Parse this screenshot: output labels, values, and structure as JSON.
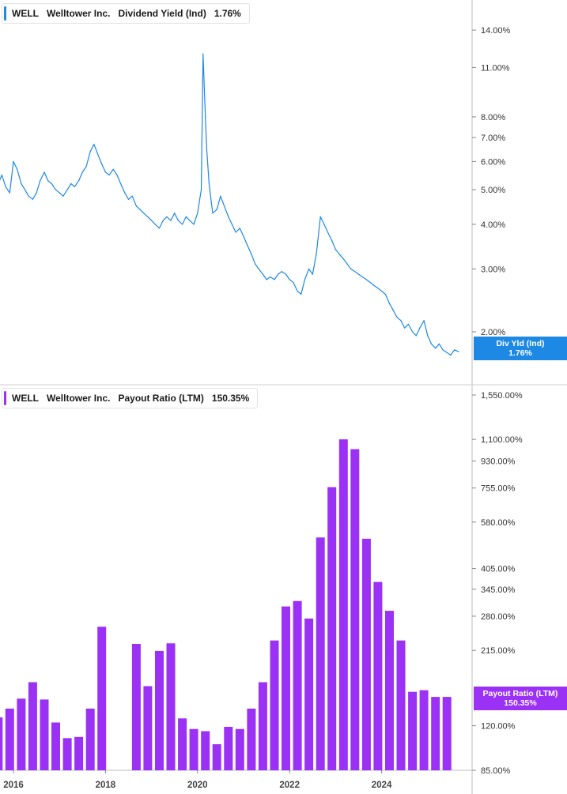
{
  "colors": {
    "yield_line": "#1e88e5",
    "payout_bar": "#9a31f5",
    "axis": "#bdbdbd"
  },
  "panels": [
    {
      "legend": {
        "ticker": "WELL",
        "company": "Welltower Inc.",
        "metric": "Dividend Yield (Ind)",
        "value": "1.76%"
      },
      "tag": {
        "line1": "Div Yld (Ind)",
        "line2": "1.76%"
      }
    },
    {
      "legend": {
        "ticker": "WELL",
        "company": "Welltower Inc.",
        "metric": "Payout Ratio (LTM)",
        "value": "150.35%"
      },
      "tag": {
        "line1": "Payout Ratio (LTM)",
        "line2": "150.35%"
      }
    }
  ],
  "chart_data": [
    {
      "type": "line",
      "scale": "log",
      "x_ticks": [
        "2016",
        "2018",
        "2020",
        "2022",
        "2024"
      ],
      "y_ticks": [
        "2.00%",
        "3.00%",
        "4.00%",
        "5.00%",
        "6.00%",
        "7.00%",
        "8.00%",
        "11.00%",
        "14.00%"
      ],
      "ylim": [
        1.55,
        17
      ],
      "x": [
        2015.67,
        2015.75,
        2015.83,
        2015.92,
        2016.0,
        2016.08,
        2016.17,
        2016.25,
        2016.33,
        2016.42,
        2016.5,
        2016.58,
        2016.67,
        2016.75,
        2016.83,
        2016.92,
        2017.0,
        2017.08,
        2017.17,
        2017.25,
        2017.33,
        2017.42,
        2017.5,
        2017.58,
        2017.67,
        2017.75,
        2017.83,
        2017.92,
        2018.0,
        2018.08,
        2018.17,
        2018.25,
        2018.33,
        2018.42,
        2018.5,
        2018.58,
        2018.67,
        2018.75,
        2018.83,
        2018.92,
        2019.0,
        2019.08,
        2019.17,
        2019.25,
        2019.33,
        2019.42,
        2019.5,
        2019.58,
        2019.67,
        2019.75,
        2019.83,
        2019.92,
        2020.0,
        2020.08,
        2020.12,
        2020.17,
        2020.2,
        2020.25,
        2020.3,
        2020.33,
        2020.42,
        2020.5,
        2020.58,
        2020.67,
        2020.75,
        2020.83,
        2020.92,
        2021.0,
        2021.08,
        2021.17,
        2021.25,
        2021.33,
        2021.42,
        2021.5,
        2021.58,
        2021.67,
        2021.75,
        2021.83,
        2021.92,
        2022.0,
        2022.08,
        2022.17,
        2022.25,
        2022.33,
        2022.42,
        2022.5,
        2022.58,
        2022.67,
        2022.75,
        2022.83,
        2022.92,
        2023.0,
        2023.08,
        2023.17,
        2023.25,
        2023.33,
        2023.42,
        2023.5,
        2023.58,
        2023.67,
        2023.75,
        2023.83,
        2023.92,
        2024.0,
        2024.08,
        2024.17,
        2024.25,
        2024.33,
        2024.42,
        2024.5,
        2024.58,
        2024.67,
        2024.75,
        2024.83,
        2024.92,
        2025.0,
        2025.08,
        2025.17,
        2025.25,
        2025.33,
        2025.42,
        2025.5,
        2025.58,
        2025.67
      ],
      "y": [
        5.2,
        5.5,
        5.1,
        4.9,
        6.0,
        5.7,
        5.2,
        5.0,
        4.8,
        4.7,
        4.9,
        5.3,
        5.6,
        5.3,
        5.2,
        5.0,
        4.9,
        4.8,
        5.0,
        5.2,
        5.1,
        5.3,
        5.6,
        5.8,
        6.4,
        6.7,
        6.3,
        5.9,
        5.6,
        5.5,
        5.7,
        5.5,
        5.2,
        4.9,
        4.7,
        4.8,
        4.5,
        4.4,
        4.3,
        4.2,
        4.1,
        4.0,
        3.9,
        4.1,
        4.2,
        4.1,
        4.3,
        4.1,
        4.0,
        4.2,
        4.1,
        4.0,
        4.3,
        5.0,
        12.0,
        8.0,
        6.5,
        5.2,
        4.6,
        4.3,
        4.4,
        4.8,
        4.5,
        4.2,
        4.0,
        3.8,
        3.9,
        3.7,
        3.5,
        3.3,
        3.1,
        3.0,
        2.9,
        2.8,
        2.85,
        2.8,
        2.9,
        2.95,
        2.9,
        2.8,
        2.75,
        2.6,
        2.55,
        2.8,
        3.0,
        2.9,
        3.3,
        4.2,
        4.0,
        3.8,
        3.6,
        3.4,
        3.3,
        3.2,
        3.1,
        3.0,
        2.95,
        2.9,
        2.85,
        2.8,
        2.75,
        2.7,
        2.65,
        2.6,
        2.55,
        2.4,
        2.3,
        2.2,
        2.15,
        2.05,
        2.1,
        2.0,
        1.95,
        2.05,
        2.15,
        1.95,
        1.85,
        1.8,
        1.85,
        1.78,
        1.75,
        1.72,
        1.78,
        1.76
      ]
    },
    {
      "type": "bar",
      "scale": "log",
      "x_ticks": [
        "2016",
        "2018",
        "2020",
        "2022",
        "2024"
      ],
      "y_ticks": [
        "85.00%",
        "120.00%",
        "215.00%",
        "280.00%",
        "345.00%",
        "405.00%",
        "580.00%",
        "755.00%",
        "930.00%",
        "1,100.00%",
        "1,550.00%"
      ],
      "ylim": [
        85,
        1550
      ],
      "x": [
        2015.67,
        2015.92,
        2016.17,
        2016.42,
        2016.67,
        2016.92,
        2017.17,
        2017.42,
        2017.67,
        2017.92,
        2018.17,
        2018.42,
        2018.67,
        2018.92,
        2019.17,
        2019.42,
        2019.67,
        2019.92,
        2020.17,
        2020.42,
        2020.67,
        2020.92,
        2021.17,
        2021.42,
        2021.67,
        2021.92,
        2022.17,
        2022.42,
        2022.67,
        2022.92,
        2023.17,
        2023.42,
        2023.67,
        2023.92,
        2024.17,
        2024.42,
        2024.67,
        2024.92,
        2025.17,
        2025.42
      ],
      "values": [
        128,
        137,
        148,
        168,
        147,
        123,
        109,
        110,
        137,
        258,
        null,
        null,
        226,
        163,
        214,
        227,
        127,
        117,
        115,
        104,
        119,
        117,
        137,
        168,
        232,
        302,
        315,
        275,
        515,
        760,
        1100,
        1020,
        510,
        365,
        292,
        232,
        156,
        158,
        150,
        150
      ]
    }
  ]
}
